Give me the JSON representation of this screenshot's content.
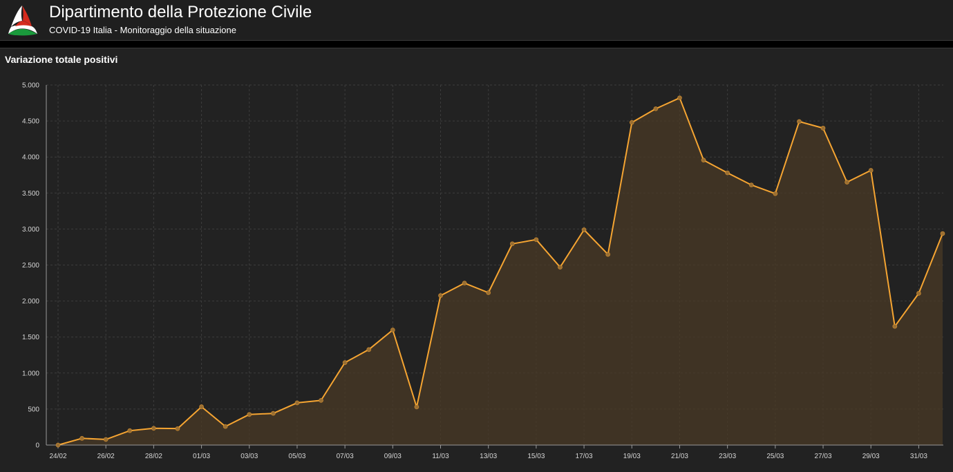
{
  "header": {
    "title": "Dipartimento della Protezione Civile",
    "subtitle": "COVID-19 Italia - Monitoraggio della situazione",
    "logo_icon": "protezione-civile-logo",
    "background": "#1f1f1f"
  },
  "panel": {
    "title": "Variazione totale positivi",
    "background": "#222222"
  },
  "chart_data": {
    "type": "area",
    "title": "Variazione totale positivi",
    "xlabel": "",
    "ylabel": "",
    "ylim": [
      0,
      5000
    ],
    "yticks": [
      0,
      500,
      1000,
      1500,
      2000,
      2500,
      3000,
      3500,
      4000,
      4500,
      5000
    ],
    "ytick_labels": [
      "0",
      "500",
      "1.000",
      "1.500",
      "2.000",
      "2.500",
      "3.000",
      "3.500",
      "4.000",
      "4.500",
      "5.000"
    ],
    "x": [
      "24/02",
      "25/02",
      "26/02",
      "27/02",
      "28/02",
      "29/02",
      "01/03",
      "02/03",
      "03/03",
      "04/03",
      "05/03",
      "06/03",
      "07/03",
      "08/03",
      "09/03",
      "10/03",
      "11/03",
      "12/03",
      "13/03",
      "14/03",
      "15/03",
      "16/03",
      "17/03",
      "18/03",
      "19/03",
      "20/03",
      "21/03",
      "22/03",
      "23/03",
      "24/03",
      "25/03",
      "26/03",
      "27/03",
      "28/03",
      "29/03",
      "30/03",
      "31/03",
      "01/04"
    ],
    "xtick_labels": [
      "24/02",
      "26/02",
      "28/02",
      "01/03",
      "03/03",
      "05/03",
      "07/03",
      "09/03",
      "11/03",
      "13/03",
      "15/03",
      "17/03",
      "19/03",
      "21/03",
      "23/03",
      "25/03",
      "27/03",
      "29/03",
      "31/03"
    ],
    "series": [
      {
        "values": [
          0,
          93,
          78,
          200,
          233,
          228,
          532,
          258,
          425,
          440,
          586,
          620,
          1145,
          1326,
          1598,
          529,
          2076,
          2249,
          2116,
          2795,
          2853,
          2470,
          2989,
          2648,
          4480,
          4670,
          4821,
          3957,
          3780,
          3612,
          3491,
          4492,
          4401,
          3651,
          3815,
          1648,
          2107,
          2937
        ],
        "color": "#f6a532"
      }
    ],
    "grid": true,
    "legend": "none"
  }
}
